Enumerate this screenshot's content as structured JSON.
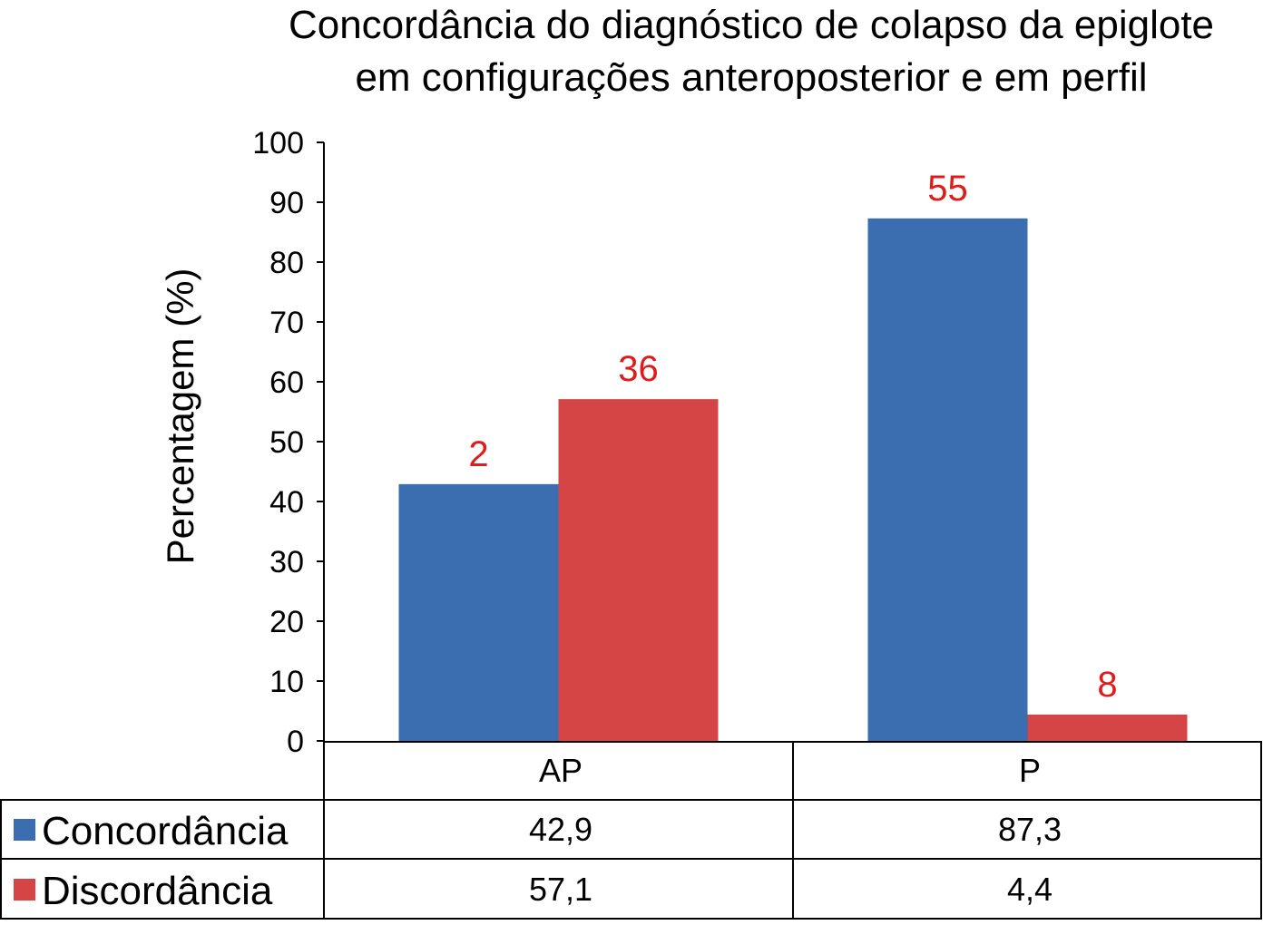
{
  "colors": {
    "concordancia": "#3b6eb0",
    "discordancia": "#d64545",
    "data_label": "#e01b1b",
    "axis": "#000000"
  },
  "chart_data": {
    "type": "bar",
    "title": [
      "Concordância do diagnóstico de colapso da epiglote",
      "em configurações anteroposterior e em perfil"
    ],
    "xlabel": "",
    "ylabel": "Percentagem (%)",
    "ylim": [
      0,
      100
    ],
    "yticks": [
      0,
      10,
      20,
      30,
      40,
      50,
      60,
      70,
      80,
      90,
      100
    ],
    "categories": [
      "AP",
      "P"
    ],
    "series": [
      {
        "name": "Concordância",
        "values": [
          42.9,
          87.3
        ],
        "value_labels": [
          "42,9",
          "87,3"
        ],
        "bar_labels": [
          "2",
          "55"
        ]
      },
      {
        "name": "Discordância",
        "values": [
          57.1,
          4.4
        ],
        "value_labels": [
          "57,1",
          "4,4"
        ],
        "bar_labels": [
          "36",
          "8"
        ]
      }
    ],
    "grid": false,
    "legend": "data-table-below"
  }
}
